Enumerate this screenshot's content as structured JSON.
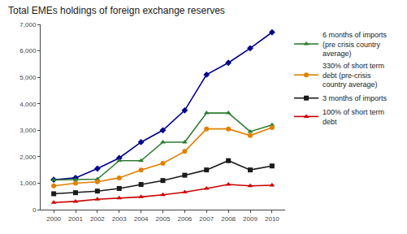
{
  "chart_data": {
    "type": "line",
    "title": "Total EMEs holdings of foreign exchange reserves",
    "x": [
      2000,
      2001,
      2002,
      2003,
      2004,
      2005,
      2006,
      2007,
      2008,
      2009,
      2010
    ],
    "series": [
      {
        "color": "#00008B",
        "marker": "diamond",
        "values": [
          1130,
          1200,
          1550,
          1950,
          2550,
          3000,
          3750,
          5100,
          5550,
          6100,
          6700
        ]
      },
      {
        "name": "6 months of imports\n(pre crisis country\naverage)",
        "color": "#2e7d32",
        "marker": "triangle-up",
        "values": [
          1120,
          1130,
          1150,
          1850,
          1850,
          2550,
          2550,
          3650,
          3650,
          2950,
          3200
        ]
      },
      {
        "name": "330% of short term\ndebt (pre-crisis\ncountry average)",
        "color": "#e08000",
        "marker": "circle",
        "values": [
          900,
          1000,
          1050,
          1200,
          1500,
          1750,
          2200,
          3050,
          3050,
          2800,
          3100
        ]
      },
      {
        "name": "3 months of imports",
        "color": "#1a1a1a",
        "marker": "square",
        "values": [
          600,
          640,
          700,
          800,
          950,
          1100,
          1300,
          1500,
          1850,
          1500,
          1650
        ]
      },
      {
        "name": "100% of short term\ndebt",
        "color": "#cc0000",
        "marker": "triangle-up",
        "values": [
          270,
          310,
          390,
          440,
          480,
          560,
          660,
          800,
          950,
          900,
          920
        ]
      }
    ],
    "xlim": [
      1999.4,
      2010.6
    ],
    "xticks": [
      2000,
      2001,
      2002,
      2003,
      2004,
      2005,
      2006,
      2007,
      2008,
      2009,
      2010
    ],
    "ylim": [
      0,
      7000
    ],
    "yticks": [
      0,
      {
        "value": 1000,
        "label": "1,000"
      },
      {
        "value": 2000,
        "label": "2,000"
      },
      {
        "value": 3000,
        "label": "3,000"
      },
      {
        "value": 4000,
        "label": "4,000"
      },
      {
        "value": 5000,
        "label": "5,000"
      },
      {
        "value": 6000,
        "label": "6,000"
      },
      {
        "value": 7000,
        "label": "7,000"
      }
    ],
    "grid": false,
    "legend": "right"
  }
}
